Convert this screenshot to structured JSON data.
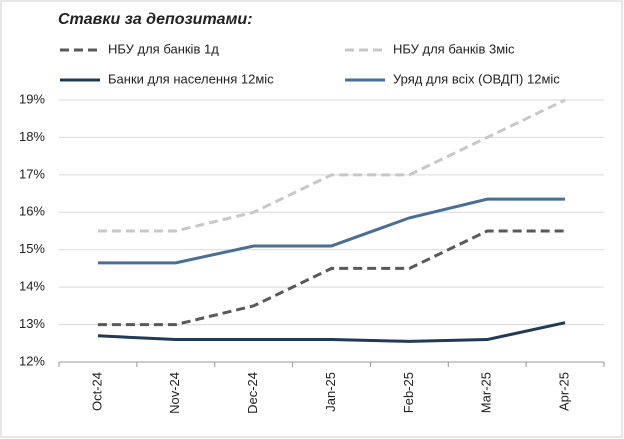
{
  "chart_data": {
    "type": "line",
    "title": "Ставки за депозитами:",
    "categories": [
      "Oct-24",
      "Nov-24",
      "Dec-24",
      "Jan-25",
      "Feb-25",
      "Mar-25",
      "Apr-25"
    ],
    "series": [
      {
        "name": "НБУ для банків 1д",
        "color": "#595959",
        "dash": true,
        "values": [
          13,
          13,
          13.5,
          14.5,
          14.5,
          15.5,
          15.5
        ]
      },
      {
        "name": "НБУ для банків 3міс",
        "color": "#c8c8c8",
        "dash": true,
        "values": [
          15.5,
          15.5,
          16,
          17,
          17,
          18,
          19
        ]
      },
      {
        "name": "Банки для населення 12міс",
        "color": "#1f3b57",
        "dash": false,
        "values": [
          12.7,
          12.6,
          12.6,
          12.6,
          12.55,
          12.6,
          13.05
        ]
      },
      {
        "name": "Уряд для всіх (ОВДП) 12міс",
        "color": "#4a6f96",
        "dash": false,
        "values": [
          14.65,
          14.65,
          15.1,
          15.1,
          15.85,
          16.35,
          16.35
        ]
      }
    ],
    "ylim": [
      12,
      19
    ],
    "yticks": [
      {
        "value": 12,
        "label": "12%"
      },
      {
        "value": 13,
        "label": "13%"
      },
      {
        "value": 14,
        "label": "14%"
      },
      {
        "value": 15,
        "label": "15%"
      },
      {
        "value": 16,
        "label": "16%"
      },
      {
        "value": 17,
        "label": "17%"
      },
      {
        "value": 18,
        "label": "18%"
      },
      {
        "value": 19,
        "label": "19%"
      }
    ],
    "grid": true
  }
}
